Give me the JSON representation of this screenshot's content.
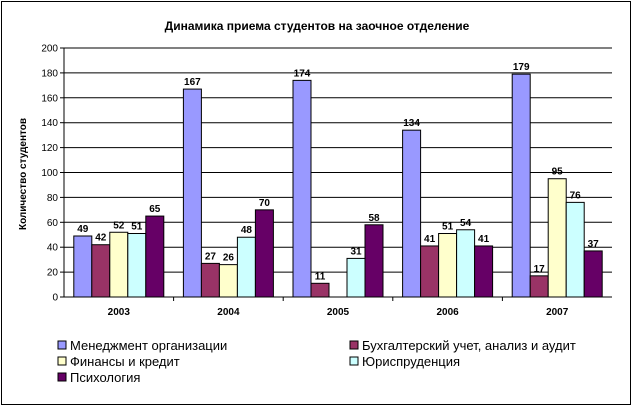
{
  "chart_data": {
    "type": "bar",
    "title": "Динамика приема студентов на заочное отделение",
    "xlabel": "",
    "ylabel": "Количество студентов",
    "ylim": [
      0,
      200
    ],
    "yticks": [
      0,
      20,
      40,
      60,
      80,
      100,
      120,
      140,
      160,
      180,
      200
    ],
    "ytick_labels": [
      "0",
      "20",
      "40",
      "60",
      "80",
      "100",
      "120",
      "140",
      "160",
      "180",
      "200"
    ],
    "grid": true,
    "legend_position": "bottom",
    "categories": [
      "2003",
      "2004",
      "2005",
      "2006",
      "2007"
    ],
    "series": [
      {
        "name": "Менеджмент организации",
        "color": "#9999ff",
        "values": [
          49,
          167,
          174,
          134,
          179
        ]
      },
      {
        "name": "Бухгалтерский учет, анализ и аудит",
        "color": "#993366",
        "values": [
          42,
          27,
          11,
          41,
          17
        ]
      },
      {
        "name": "Финансы и кредит",
        "color": "#ffffcc",
        "values": [
          52,
          26,
          null,
          51,
          95
        ]
      },
      {
        "name": "Юриспруденция",
        "color": "#ccffff",
        "values": [
          51,
          48,
          31,
          54,
          76
        ]
      },
      {
        "name": "Психология",
        "color": "#660066",
        "values": [
          65,
          70,
          58,
          41,
          37
        ]
      }
    ],
    "data_labels": [
      [
        "49",
        "42",
        "52",
        "51",
        "65"
      ],
      [
        "167",
        "27",
        "26",
        "48",
        "70"
      ],
      [
        "174",
        "11",
        "",
        "31",
        "58"
      ],
      [
        "134",
        "41",
        "51",
        "54",
        "41"
      ],
      [
        "179",
        "17",
        "95",
        "76",
        "37"
      ]
    ]
  }
}
